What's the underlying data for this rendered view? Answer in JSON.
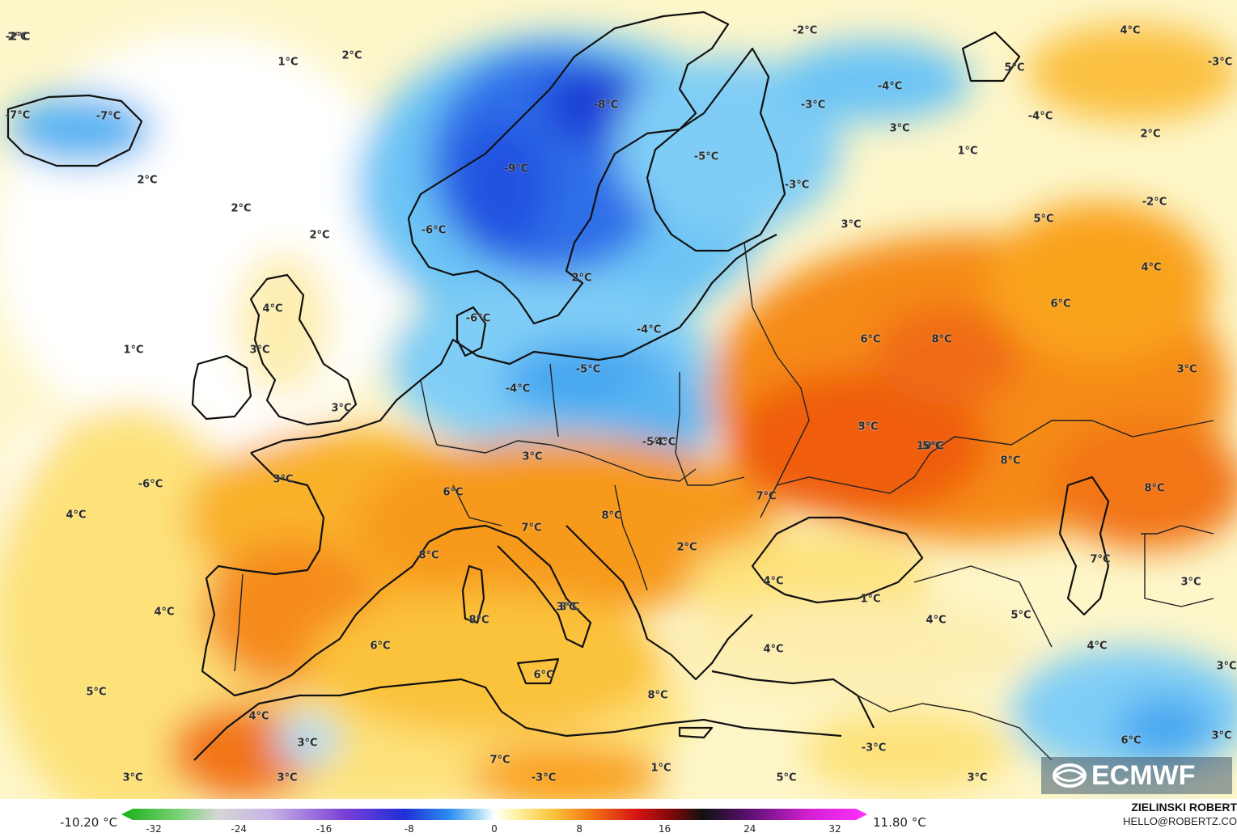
{
  "map": {
    "source_logo": "ECMWF",
    "temperature_labels": [
      "2°C",
      "1°C",
      "2°C",
      "-7°C",
      "-7°C",
      "2°C",
      "2°C",
      "2°C",
      "1°C",
      "4°C",
      "3°C",
      "3°C",
      "-8°C",
      "-6°C",
      "-9°C",
      "-6°C",
      "2°C",
      "-4°C",
      "-5°C",
      "-5°C",
      "-3°C",
      "-2°C",
      "-4°C",
      "-3°C",
      "3°C",
      "1°C",
      "4°C",
      "5°C",
      "-3°C",
      "-4°C",
      "2°C",
      "-2°C",
      "3°C",
      "5°C",
      "4°C",
      "6°C",
      "6°C",
      "8°C",
      "3°C",
      "-4°C",
      "-5°C",
      "-4°C",
      "-6°C",
      "4°C",
      "3°C",
      "6°C",
      "7°C",
      "8°C",
      "3°C",
      "3°C",
      "4°C",
      "6°C",
      "8°C",
      "6°C",
      "5°C",
      "10°C",
      "8°C",
      "8°C",
      "7°C",
      "8°C",
      "2°C",
      "7°C",
      "3°C",
      "1°C",
      "4°C",
      "4°C",
      "5°C",
      "4°C",
      "4°C",
      "8°C",
      "4°C",
      "3°C",
      "3°C",
      "3°C",
      "3°C",
      "7°C",
      "-3°C",
      "1°C",
      "5°C",
      "3°C",
      "-3°C",
      "6°C",
      "3°C",
      "5°C",
      "3°C",
      "3°C",
      "-5°C",
      "-2°C"
    ],
    "colors": {
      "deep_blue": "#1c3fd6",
      "mid_blue": "#3b8cf0",
      "light_blue": "#a9dcf7",
      "pale": "#fdf6c9",
      "yellow": "#fde27a",
      "orange": "#f9a21c",
      "red_orange": "#f06a12",
      "coastline": "#000000"
    }
  },
  "legend": {
    "min_value": "-10.20 °C",
    "max_value": "11.80 °C",
    "ticks": [
      "-32",
      "-24",
      "-16",
      "-8",
      "0",
      "8",
      "16",
      "24",
      "32"
    ]
  },
  "credits": {
    "author": "ZIELINSKI ROBERT",
    "email": "HELLO@ROBERTZ.CO"
  }
}
